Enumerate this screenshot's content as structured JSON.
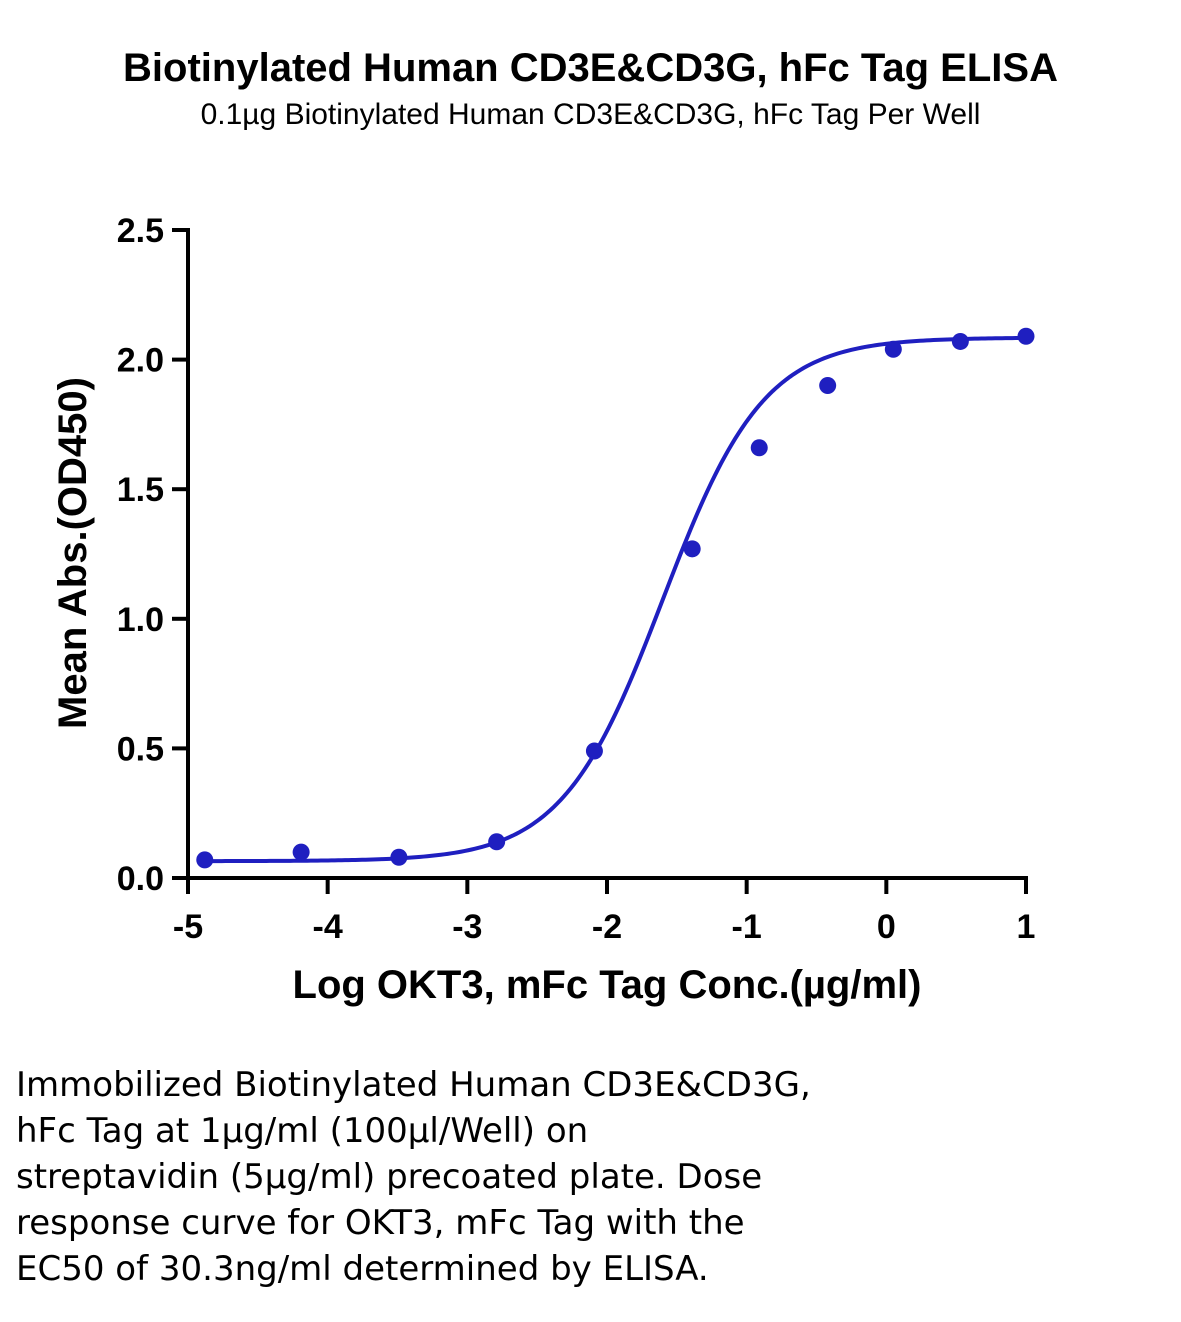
{
  "chart_data": {
    "type": "scatter",
    "title": "Biotinylated Human CD3E&CD3G, hFc Tag ELISA",
    "subtitle": "0.1µg Biotinylated Human CD3E&CD3G, hFc Tag Per Well",
    "xlabel": "Log OKT3, mFc Tag Conc.(µg/ml)",
    "ylabel": "Mean Abs.(OD450)",
    "xlim": [
      -5,
      1
    ],
    "ylim": [
      0,
      2.5
    ],
    "x_ticks": [
      "-5",
      "-4",
      "-3",
      "-2",
      "-1",
      "0",
      "1"
    ],
    "y_ticks": [
      "0.0",
      "0.5",
      "1.0",
      "1.5",
      "2.0",
      "2.5"
    ],
    "grid": false,
    "legend": "none",
    "series": [
      {
        "x": [
          -4.88,
          -4.19,
          -3.49,
          -2.79,
          -2.09,
          -1.39,
          -0.91,
          -0.42,
          0.05,
          0.53,
          1.0
        ],
        "y": [
          0.07,
          0.1,
          0.08,
          0.14,
          0.49,
          1.27,
          1.66,
          1.9,
          2.04,
          2.07,
          2.09
        ],
        "fit": "four-parameter logistic",
        "fit_params": {
          "bottom": 0.065,
          "top": 2.085,
          "log_ec50": -1.6,
          "hill_slope": 1.2
        },
        "color": "#1F1FC0"
      }
    ]
  },
  "caption": {
    "lines": [
      "Immobilized Biotinylated Human CD3E&CD3G,",
      "hFc Tag at 1µg/ml (100µl/Well) on",
      "streptavidin (5µg/ml) precoated plate. Dose",
      "response curve for OKT3, mFc Tag with the",
      "EC50 of 30.3ng/ml determined by ELISA."
    ]
  }
}
